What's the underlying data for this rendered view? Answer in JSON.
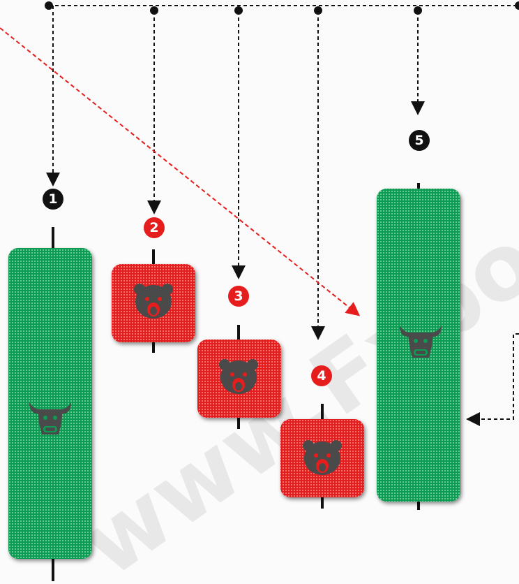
{
  "nodes": [
    {
      "label": "1"
    },
    {
      "label": "2"
    },
    {
      "label": "3"
    },
    {
      "label": "4"
    },
    {
      "label": "5"
    }
  ],
  "watermark": "www.Fxborssa.com"
}
